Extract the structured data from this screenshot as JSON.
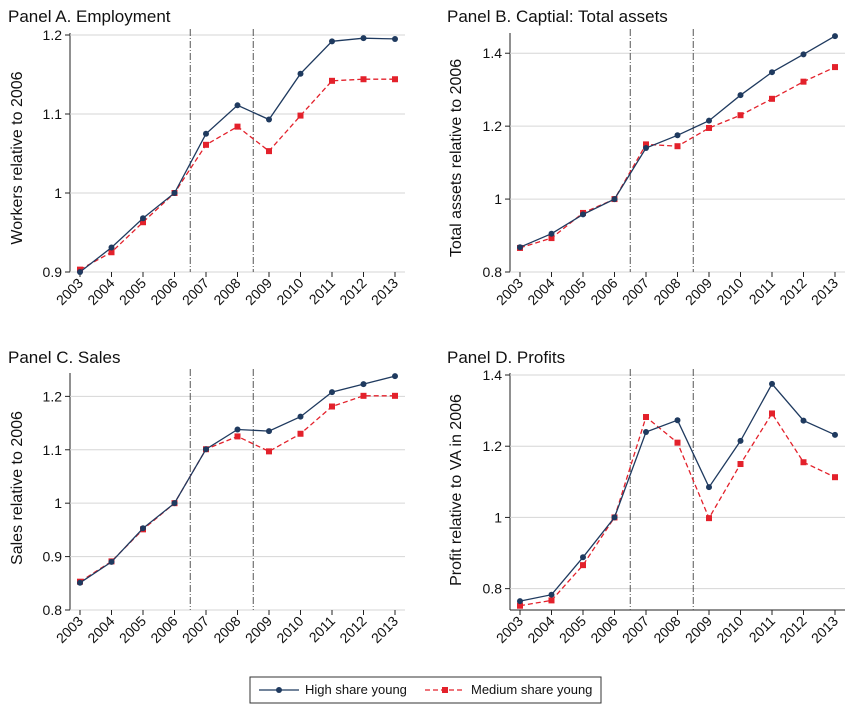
{
  "legend": {
    "placement": "bottom-center",
    "items": [
      {
        "label": "High share young",
        "color": "#1f3a5f",
        "marker": "circle",
        "dash": "solid"
      },
      {
        "label": "Medium share young",
        "color": "#e3212b",
        "marker": "square",
        "dash": "dashed"
      }
    ]
  },
  "chart_data": [
    {
      "type": "line",
      "title": "Panel A. Employment",
      "xlabel": "",
      "ylabel": "Workers relative to 2006",
      "x": [
        "2003",
        "2004",
        "2005",
        "2006",
        "2007",
        "2008",
        "2009",
        "2010",
        "2011",
        "2012",
        "2013"
      ],
      "ylim": [
        0.9,
        1.2
      ],
      "yticks": [
        0.9,
        1.0,
        1.1,
        1.2
      ],
      "ytick_labels": [
        "0.9",
        "1",
        "1.1",
        "1.2"
      ],
      "vlines": [
        "2006.5",
        "2008.5"
      ],
      "grid": "horizontal",
      "series": [
        {
          "name": "High share young",
          "values": [
            0.9,
            0.931,
            0.968,
            1.0,
            1.075,
            1.111,
            1.093,
            1.151,
            1.192,
            1.196,
            1.195
          ]
        },
        {
          "name": "Medium share young",
          "values": [
            0.903,
            0.925,
            0.963,
            1.0,
            1.061,
            1.084,
            1.053,
            1.098,
            1.142,
            1.144,
            1.144
          ]
        }
      ]
    },
    {
      "type": "line",
      "title": "Panel B. Captial: Total assets",
      "xlabel": "",
      "ylabel": "Total assets relative to 2006",
      "x": [
        "2003",
        "2004",
        "2005",
        "2006",
        "2007",
        "2008",
        "2009",
        "2010",
        "2011",
        "2012",
        "2013"
      ],
      "ylim": [
        0.8,
        1.45
      ],
      "yticks": [
        0.8,
        1.0,
        1.2,
        1.4
      ],
      "ytick_labels": [
        "0.8",
        "1",
        "1.2",
        "1.4"
      ],
      "vlines": [
        "2006.5",
        "2008.5"
      ],
      "grid": "horizontal",
      "series": [
        {
          "name": "High share young",
          "values": [
            0.868,
            0.905,
            0.958,
            1.0,
            1.14,
            1.175,
            1.215,
            1.285,
            1.348,
            1.397,
            1.447
          ]
        },
        {
          "name": "Medium share young",
          "values": [
            0.866,
            0.893,
            0.962,
            1.0,
            1.15,
            1.145,
            1.195,
            1.23,
            1.275,
            1.322,
            1.362
          ]
        }
      ]
    },
    {
      "type": "line",
      "title": "Panel C. Sales",
      "xlabel": "",
      "ylabel": "Sales relative to 2006",
      "x": [
        "2003",
        "2004",
        "2005",
        "2006",
        "2007",
        "2008",
        "2009",
        "2010",
        "2011",
        "2012",
        "2013"
      ],
      "ylim": [
        0.8,
        1.24
      ],
      "yticks": [
        0.8,
        0.9,
        1.0,
        1.1,
        1.2
      ],
      "ytick_labels": [
        "0.8",
        "0.9",
        "1",
        "1.1",
        "1.2"
      ],
      "vlines": [
        "2006.5",
        "2008.5"
      ],
      "grid": "horizontal",
      "series": [
        {
          "name": "High share young",
          "values": [
            0.851,
            0.89,
            0.953,
            1.0,
            1.101,
            1.138,
            1.135,
            1.162,
            1.208,
            1.223,
            1.238
          ]
        },
        {
          "name": "Medium share young",
          "values": [
            0.853,
            0.891,
            0.951,
            1.0,
            1.101,
            1.125,
            1.097,
            1.13,
            1.181,
            1.201,
            1.201
          ]
        }
      ]
    },
    {
      "type": "line",
      "title": "Panel D. Profits",
      "xlabel": "",
      "ylabel": "Profit relative to VA in 2006",
      "x": [
        "2003",
        "2004",
        "2005",
        "2006",
        "2007",
        "2008",
        "2009",
        "2010",
        "2011",
        "2012",
        "2013"
      ],
      "ylim": [
        0.74,
        1.4
      ],
      "yticks": [
        0.8,
        1.0,
        1.2,
        1.4
      ],
      "ytick_labels": [
        "0.8",
        "1",
        "1.2",
        "1.4"
      ],
      "vlines": [
        "2006.5",
        "2008.5"
      ],
      "grid": "horizontal",
      "series": [
        {
          "name": "High share young",
          "values": [
            0.765,
            0.783,
            0.888,
            1.0,
            1.24,
            1.273,
            1.085,
            1.215,
            1.375,
            1.272,
            1.232
          ]
        },
        {
          "name": "Medium share young",
          "values": [
            0.752,
            0.767,
            0.866,
            1.0,
            1.282,
            1.21,
            0.998,
            1.15,
            1.292,
            1.155,
            1.113
          ]
        }
      ]
    }
  ]
}
